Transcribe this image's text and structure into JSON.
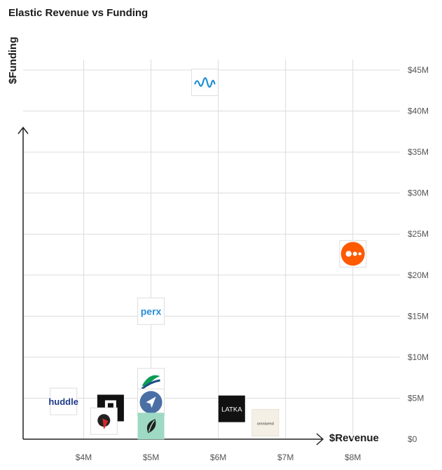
{
  "chart_data": {
    "type": "scatter",
    "title": "Elastic Revenue vs Funding",
    "xlabel": "$Revenue",
    "ylabel": "$Funding",
    "x_ticks": [
      "$4M",
      "$5M",
      "$6M",
      "$7M",
      "$8M"
    ],
    "y_ticks": [
      "$0",
      "$5M",
      "$10M",
      "$15M",
      "$20M",
      "$25M",
      "$30M",
      "$35M",
      "$40M",
      "$45M"
    ],
    "xlim": [
      3.1,
      8.7
    ],
    "ylim": [
      0,
      45
    ],
    "grid": true,
    "points": [
      {
        "label": "huddle",
        "logo": "huddle-logo",
        "x": 3.7,
        "y": 4.6
      },
      {
        "label": "",
        "logo": "black-square-logo",
        "x": 4.4,
        "y": 3.8
      },
      {
        "label": "",
        "logo": "red-bird-logo",
        "x": 4.3,
        "y": 2.2
      },
      {
        "label": "",
        "logo": "sound-wave-logo",
        "x": 5.8,
        "y": 43.5
      },
      {
        "label": "",
        "logo": "orange-dots-logo",
        "x": 8.0,
        "y": 22.6
      },
      {
        "label": "perx",
        "logo": "perx-logo",
        "x": 5.0,
        "y": 15.6
      },
      {
        "label": "",
        "logo": "green-swoosh-logo",
        "x": 5.0,
        "y": 7.0
      },
      {
        "label": "",
        "logo": "rocket-logo",
        "x": 5.0,
        "y": 4.5
      },
      {
        "label": "",
        "logo": "leaf-logo",
        "x": 5.0,
        "y": 1.6
      },
      {
        "label": "LATKA",
        "logo": "latka-logo",
        "x": 6.2,
        "y": 3.7
      },
      {
        "label": "omnisend",
        "logo": "omnisend-logo",
        "x": 6.7,
        "y": 2.0
      }
    ]
  }
}
